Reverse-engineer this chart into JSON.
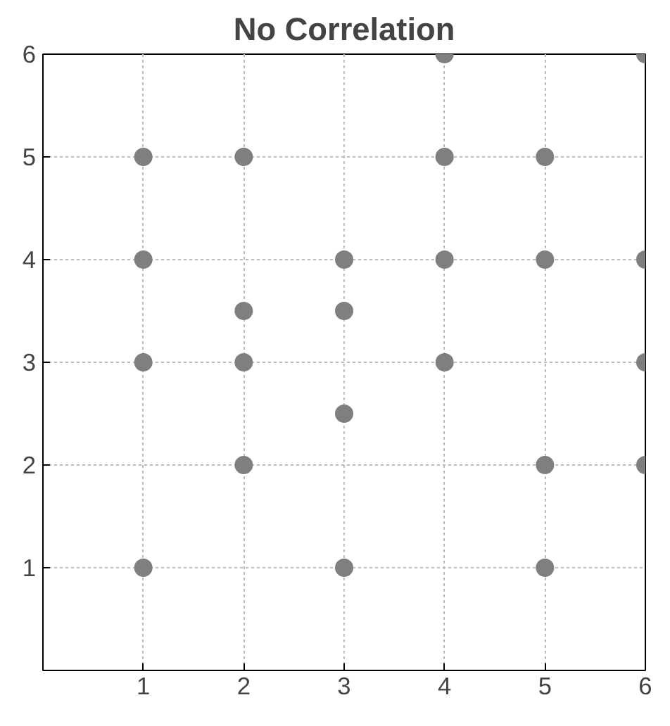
{
  "chart_data": {
    "type": "scatter",
    "title": "No Correlation",
    "x": [
      1,
      1,
      1,
      1,
      2,
      2,
      2,
      2,
      3,
      3,
      3,
      3,
      4,
      4,
      4,
      4,
      5,
      5,
      5,
      5,
      6,
      6,
      6,
      6
    ],
    "values": [
      5,
      4,
      3,
      1,
      5,
      3.5,
      3,
      2,
      4,
      3.5,
      2.5,
      1,
      6,
      5,
      4,
      3,
      5,
      4,
      2,
      1,
      6,
      4,
      3,
      2
    ],
    "color": "#7f7f7f",
    "marker": "circle",
    "xlim": [
      0,
      6
    ],
    "ylim": [
      0,
      6
    ],
    "xticks": [
      1,
      2,
      3,
      4,
      5,
      6
    ],
    "yticks": [
      1,
      2,
      3,
      4,
      5,
      6
    ],
    "grid": true
  }
}
